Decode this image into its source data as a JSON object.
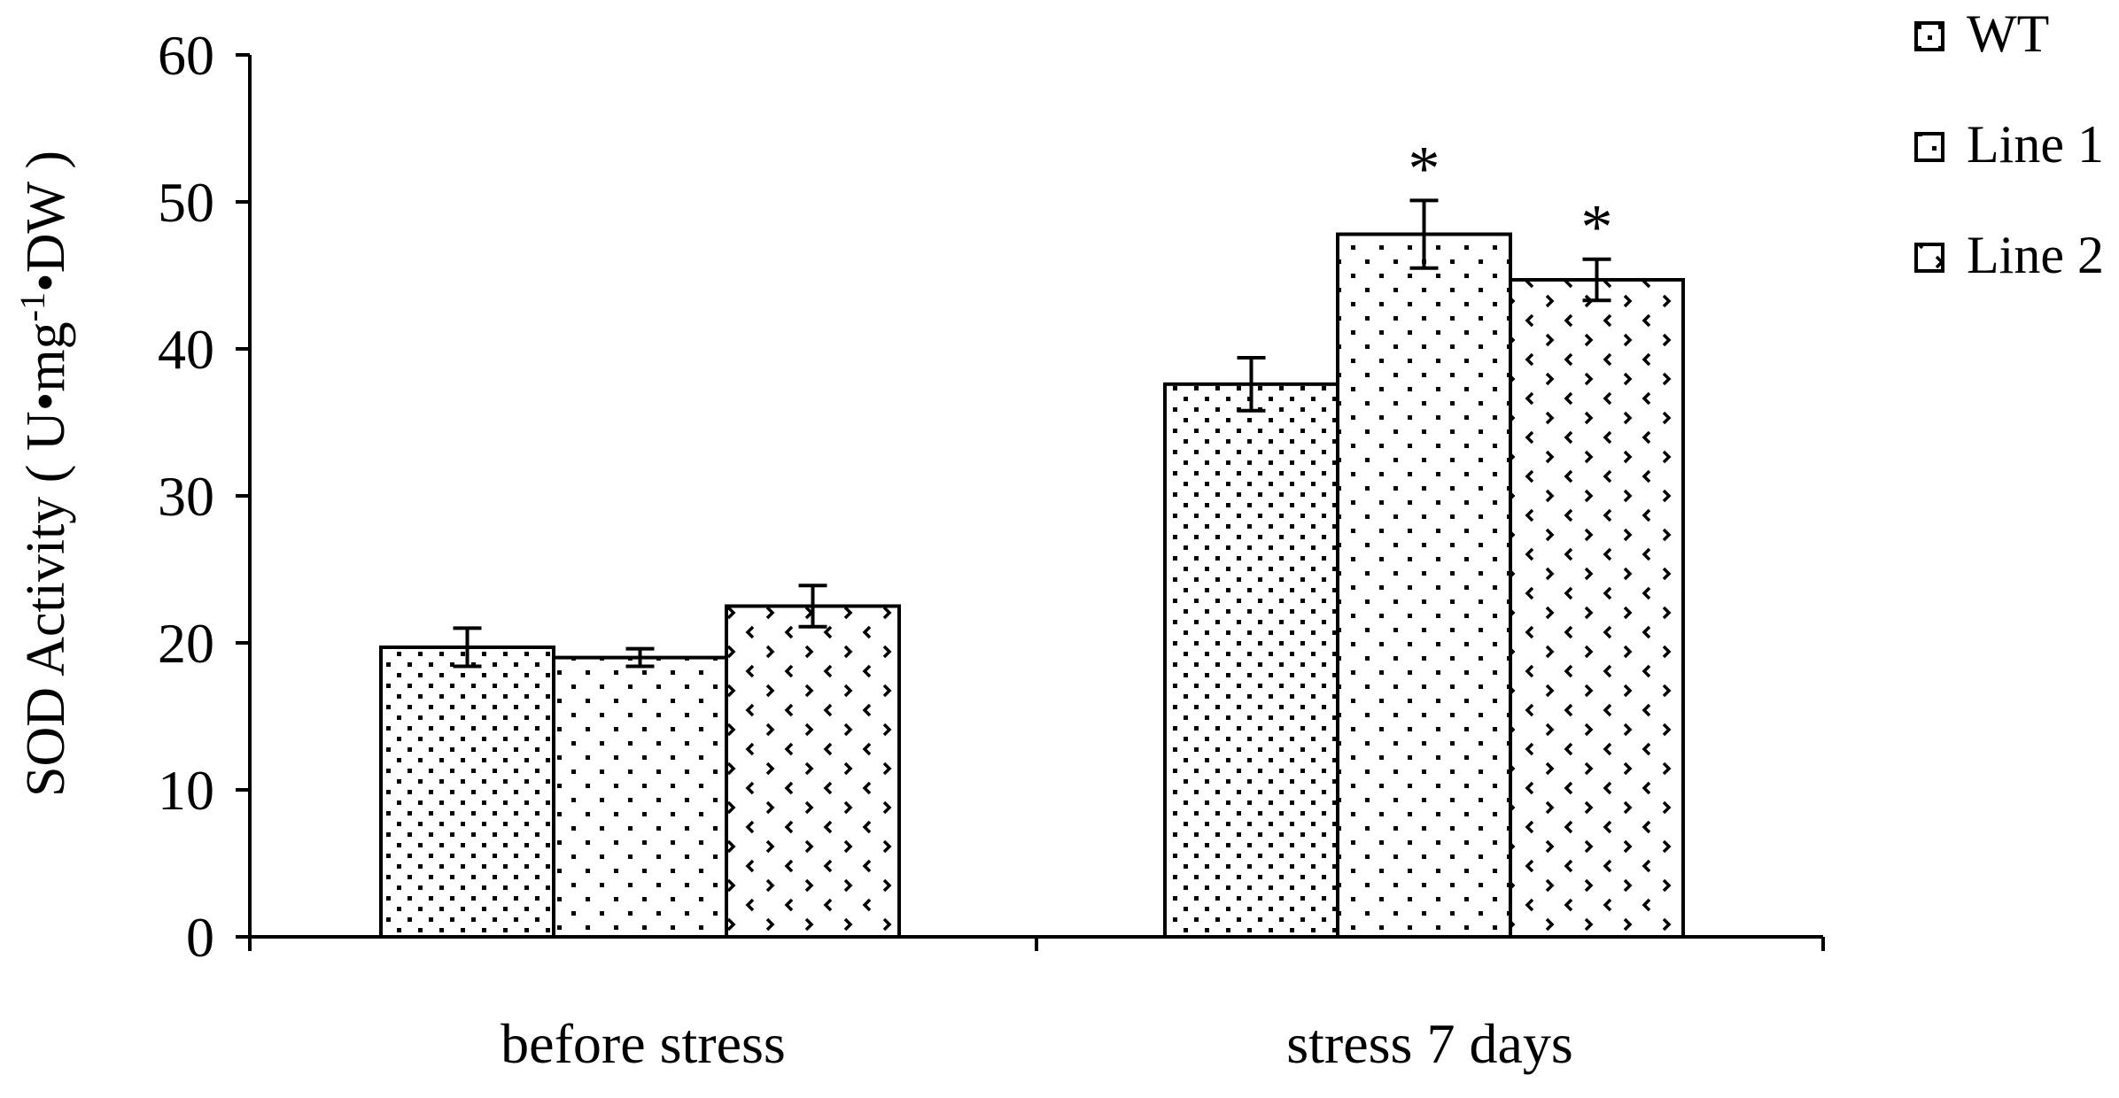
{
  "chart_data": {
    "type": "bar",
    "ylabel": "SOD Activity ( U•mg-1•DW )",
    "ylabel_parts": {
      "main": "SOD Activity ( U•mg",
      "sup": "-1",
      "tail": "•DW )"
    },
    "xlabel": "",
    "ylim": [
      0,
      60
    ],
    "yticks": [
      "0",
      "10",
      "20",
      "30",
      "40",
      "50",
      "60"
    ],
    "categories": [
      "before stress",
      "stress 7 days"
    ],
    "series": [
      {
        "name": "WT",
        "values": [
          19.7,
          37.6
        ],
        "errors": [
          1.3,
          1.8
        ],
        "pattern": "dots-dense",
        "significance": [
          "",
          ""
        ]
      },
      {
        "name": "Line 1",
        "values": [
          19.0,
          47.8
        ],
        "errors": [
          0.6,
          2.3
        ],
        "pattern": "dots-sparse",
        "significance": [
          "",
          "*"
        ]
      },
      {
        "name": "Line 2",
        "values": [
          22.5,
          44.7
        ],
        "errors": [
          1.4,
          1.4
        ],
        "pattern": "chevrons",
        "significance": [
          "",
          "*"
        ]
      }
    ],
    "legend_position": "top-right",
    "grid": false,
    "bar_fill": "#ffffff",
    "bar_stroke": "#000000"
  }
}
